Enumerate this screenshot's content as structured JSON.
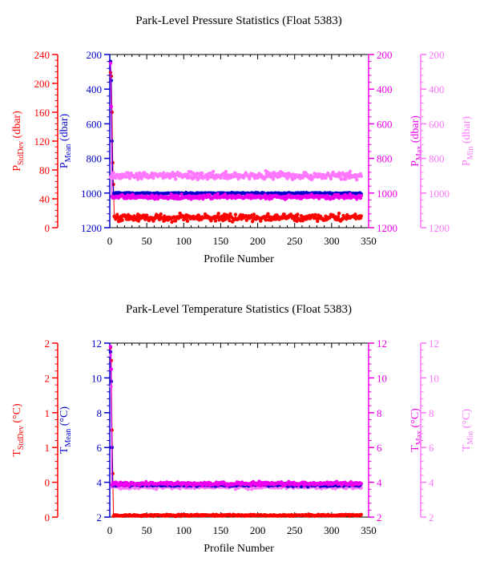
{
  "footer_text": "",
  "chart_data": [
    {
      "type": "scatter",
      "title": "Park-Level Pressure Statistics (Float 5383)",
      "xlabel": "Profile Number",
      "x_range": [
        0,
        350
      ],
      "x_ticks": [
        0,
        50,
        100,
        150,
        200,
        250,
        300,
        350
      ],
      "grid": false,
      "legend": "none",
      "axes": [
        {
          "id": "stddev",
          "side": "left-outer",
          "label": "P",
          "label_sub": "StdDev",
          "label_unit": "(dbar)",
          "color": "#ff0000",
          "range": [
            0,
            240
          ],
          "ticks": [
            0,
            40,
            80,
            120,
            160,
            200,
            240
          ],
          "tick_labels": [
            "0",
            "40",
            "80",
            "120",
            "160",
            "200",
            "240"
          ],
          "inverted": false
        },
        {
          "id": "mean",
          "side": "left-inner",
          "label": "P",
          "label_sub": "Mean",
          "label_unit": "(dbar)",
          "color": "#0000cc",
          "range": [
            200,
            1200
          ],
          "ticks": [
            200,
            400,
            600,
            800,
            1000,
            1200
          ],
          "tick_labels": [
            "200",
            "400",
            "600",
            "800",
            "1000",
            "1200"
          ],
          "inverted": true
        },
        {
          "id": "max",
          "side": "right-inner",
          "label": "P",
          "label_sub": "Max",
          "label_unit": "(dbar)",
          "color": "#ee00ee",
          "range": [
            200,
            1200
          ],
          "ticks": [
            200,
            400,
            600,
            800,
            1000,
            1200
          ],
          "tick_labels": [
            "200",
            "400",
            "600",
            "800",
            "1000",
            "1200"
          ],
          "inverted": true
        },
        {
          "id": "min",
          "side": "right-outer",
          "label": "P",
          "label_sub": "Min",
          "label_unit": "(dbar)",
          "color": "#ff77ff",
          "range": [
            200,
            1200
          ],
          "ticks": [
            200,
            400,
            600,
            800,
            1000,
            1200
          ],
          "tick_labels": [
            "200",
            "400",
            "600",
            "800",
            "1000",
            "1200"
          ],
          "inverted": true
        }
      ],
      "series": [
        {
          "axis": "stddev",
          "color": "#ff0000",
          "x_range": [
            1,
            340
          ],
          "y_range": [
            5,
            25
          ],
          "typical": 14,
          "noise": 2.5,
          "early_points": [
            [
              1,
              215
            ],
            [
              2,
              210
            ],
            [
              3,
              160
            ],
            [
              4,
              90
            ],
            [
              5,
              60
            ]
          ]
        },
        {
          "axis": "mean",
          "color": "#0000cc",
          "x_range": [
            1,
            340
          ],
          "y_range": [
            995,
            1010
          ],
          "typical": 1002,
          "noise": 2,
          "early_points": [
            [
              1,
              240
            ],
            [
              2,
              350
            ],
            [
              3,
              700
            ],
            [
              4,
              900
            ]
          ]
        },
        {
          "axis": "max",
          "color": "#ee00ee",
          "x_range": [
            1,
            340
          ],
          "y_range": [
            1000,
            1040
          ],
          "typical": 1022,
          "noise": 6,
          "early_points": [
            [
              1,
              250
            ],
            [
              2,
              500
            ]
          ]
        },
        {
          "axis": "min",
          "color": "#ff77ff",
          "x_range": [
            1,
            340
          ],
          "y_range": [
            860,
            930
          ],
          "typical": 900,
          "noise": 11,
          "early_points": []
        }
      ]
    },
    {
      "type": "scatter",
      "title": "Park-Level Temperature Statistics (Float 5383)",
      "xlabel": "Profile Number",
      "x_range": [
        0,
        350
      ],
      "x_ticks": [
        0,
        50,
        100,
        150,
        200,
        250,
        300,
        350
      ],
      "grid": false,
      "legend": "none",
      "axes": [
        {
          "id": "stddev",
          "side": "left-outer",
          "label": "T",
          "label_sub": "StdDev",
          "label_unit": "(°C)",
          "color": "#ff0000",
          "range": [
            0,
            2
          ],
          "ticks": [
            0,
            0.4,
            0.8,
            1.2,
            1.6,
            2.0
          ],
          "tick_labels": [
            "0",
            "0",
            "1",
            "1",
            "2",
            "2"
          ],
          "inverted": false
        },
        {
          "id": "mean",
          "side": "left-inner",
          "label": "T",
          "label_sub": "Mean",
          "label_unit": "(°C)",
          "color": "#0000cc",
          "range": [
            2,
            12
          ],
          "ticks": [
            2,
            4,
            6,
            8,
            10,
            12
          ],
          "tick_labels": [
            "2",
            "4",
            "6",
            "8",
            "10",
            "12"
          ],
          "inverted": false
        },
        {
          "id": "max",
          "side": "right-inner",
          "label": "T",
          "label_sub": "Max",
          "label_unit": "(°C)",
          "color": "#ee00ee",
          "range": [
            2,
            12
          ],
          "ticks": [
            2,
            4,
            6,
            8,
            10,
            12
          ],
          "tick_labels": [
            "2",
            "4",
            "6",
            "8",
            "10",
            "12"
          ],
          "inverted": false
        },
        {
          "id": "min",
          "side": "right-outer",
          "label": "T",
          "label_sub": "Min",
          "label_unit": "(°C)",
          "color": "#ff77ff",
          "range": [
            2,
            12
          ],
          "ticks": [
            2,
            4,
            6,
            8,
            10,
            12
          ],
          "tick_labels": [
            "2",
            "4",
            "6",
            "8",
            "10",
            "12"
          ],
          "inverted": false
        }
      ],
      "series": [
        {
          "axis": "stddev",
          "color": "#ff0000",
          "x_range": [
            1,
            340
          ],
          "y_range": [
            0.01,
            0.04
          ],
          "typical": 0.02,
          "noise": 0.005,
          "early_points": [
            [
              1,
              1.95
            ],
            [
              2,
              1.8
            ],
            [
              3,
              1.0
            ],
            [
              4,
              0.5
            ]
          ]
        },
        {
          "axis": "min",
          "color": "#ff77ff",
          "x_range": [
            1,
            340
          ],
          "y_range": [
            3.6,
            3.9
          ],
          "typical": 3.75,
          "noise": 0.06,
          "early_points": [
            [
              1,
              11.3
            ],
            [
              2,
              9.5
            ]
          ]
        },
        {
          "axis": "mean",
          "color": "#0000cc",
          "x_range": [
            1,
            340
          ],
          "y_range": [
            3.75,
            3.95
          ],
          "typical": 3.85,
          "noise": 0.04,
          "early_points": [
            [
              1,
              11.5
            ],
            [
              2,
              9.8
            ],
            [
              3,
              6.0
            ]
          ]
        },
        {
          "axis": "max",
          "color": "#ee00ee",
          "x_range": [
            1,
            340
          ],
          "y_range": [
            3.8,
            4.05
          ],
          "typical": 3.92,
          "noise": 0.05,
          "early_points": [
            [
              1,
              11.8
            ],
            [
              2,
              10.5
            ]
          ]
        }
      ]
    }
  ]
}
